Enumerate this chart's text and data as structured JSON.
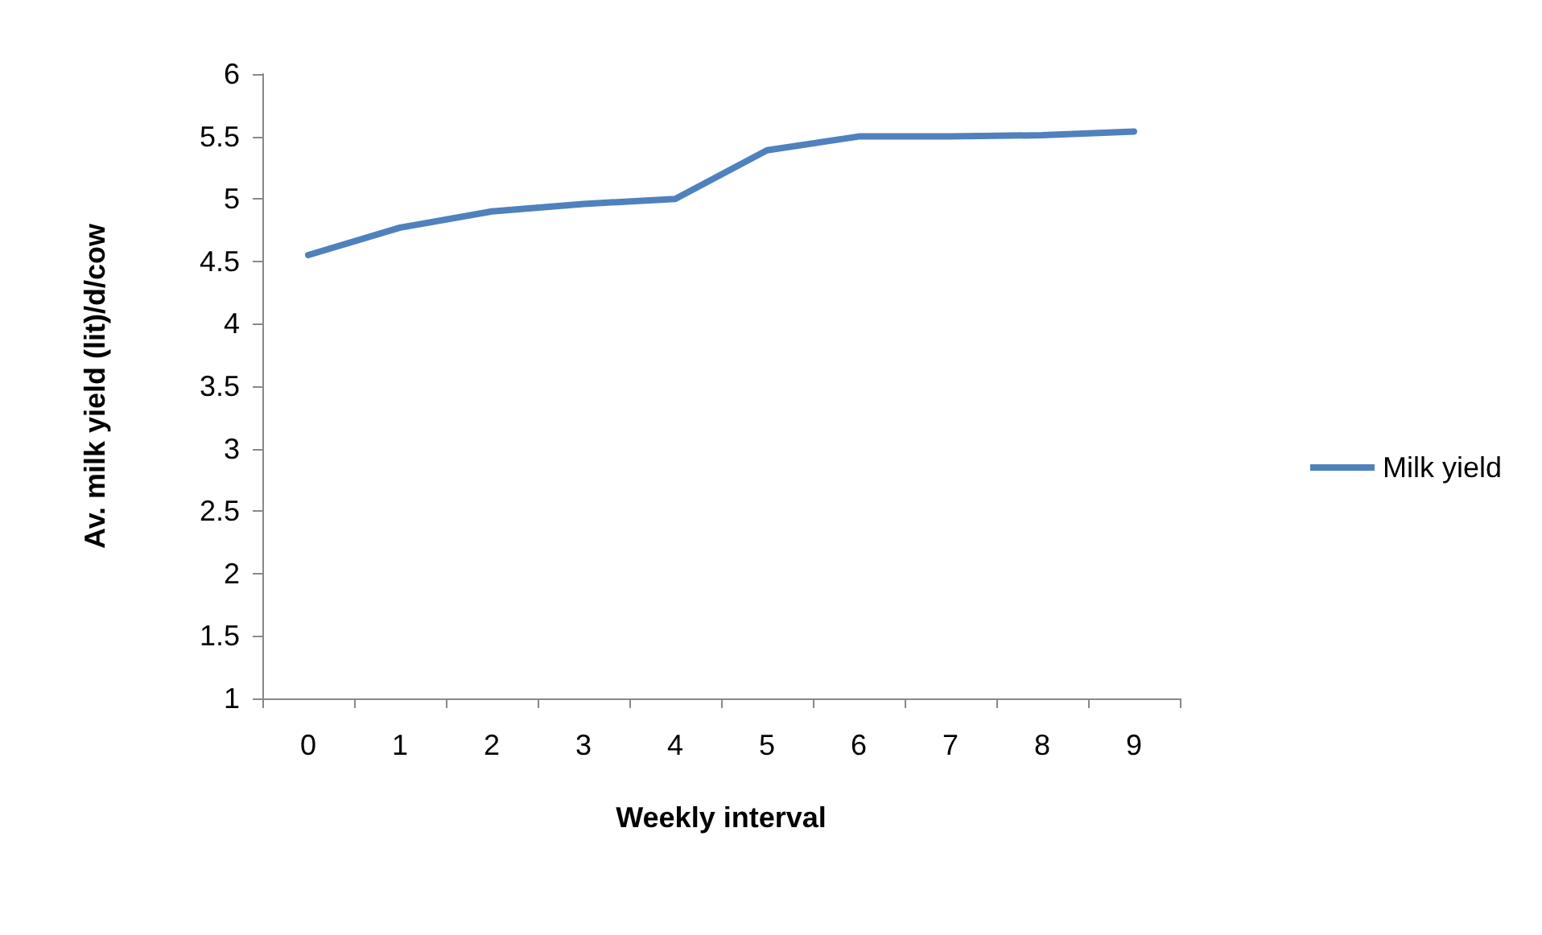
{
  "chart_data": {
    "type": "line",
    "xlabel": "Weekly interval",
    "ylabel": "Av. milk yield (lit)/d/cow",
    "categories": [
      "0",
      "1",
      "2",
      "3",
      "4",
      "5",
      "6",
      "7",
      "8",
      "9"
    ],
    "series": [
      {
        "name": "Milk yield",
        "color": "#4f81bd",
        "values": [
          4.55,
          4.77,
          4.9,
          4.96,
          5.0,
          5.39,
          5.5,
          5.5,
          5.51,
          5.54
        ]
      }
    ],
    "ylim": [
      1,
      6
    ],
    "yticks": [
      1,
      1.5,
      2,
      2.5,
      3,
      3.5,
      4,
      4.5,
      5,
      5.5,
      6
    ],
    "grid": false,
    "legend": "right",
    "marker": "none",
    "line_style": "solid"
  }
}
